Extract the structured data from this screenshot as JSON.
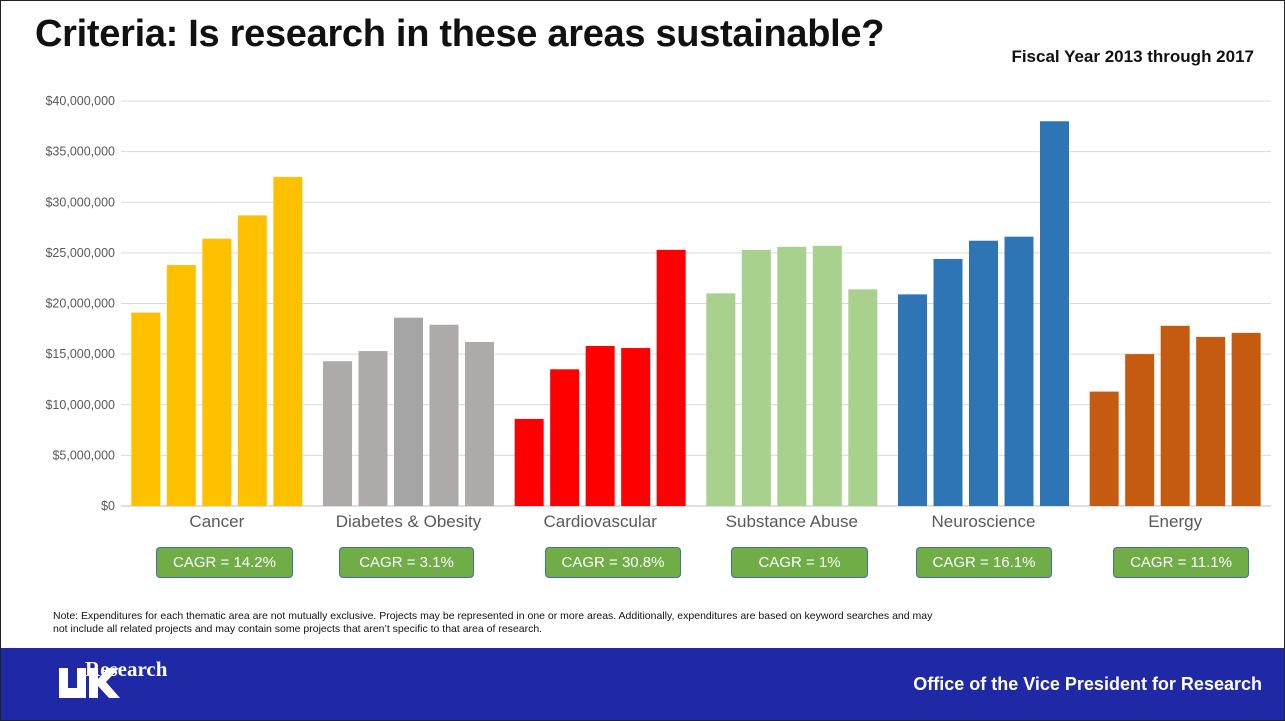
{
  "slide": {
    "title": "Criteria:  Is research in these areas sustainable?",
    "subtitle": "Fiscal Year 2013 through 2017",
    "note": "Note: Expenditures for each thematic area are not mutually exclusive. Projects may be represented in one or more areas. Additionally, expenditures are based on keyword searches and may not include all related projects and may contain some projects that aren’t specific to that area of research."
  },
  "cagr": [
    "CAGR = 14.2%",
    "CAGR = 3.1%",
    "CAGR = 30.8%",
    "CAGR = 1%",
    "CAGR = 16.1%",
    "CAGR = 11.1%"
  ],
  "footer": {
    "logo_text": "Research",
    "right_text": "Office of the Vice President for Research",
    "background": "#1f29a6"
  },
  "chart_data": {
    "type": "bar",
    "title": "",
    "xlabel": "",
    "ylabel": "",
    "ylim": [
      0,
      40000000
    ],
    "y_ticks": [
      0,
      5000000,
      10000000,
      15000000,
      20000000,
      25000000,
      30000000,
      35000000,
      40000000
    ],
    "y_tick_labels": [
      "$0",
      "$5,000,000",
      "$10,000,000",
      "$15,000,000",
      "$20,000,000",
      "$25,000,000",
      "$30,000,000",
      "$35,000,000",
      "$40,000,000"
    ],
    "grid": true,
    "categories": [
      "Cancer",
      "Diabetes & Obesity",
      "Cardiovascular",
      "Substance Abuse",
      "Neuroscience",
      "Energy"
    ],
    "category_colors": [
      "#ffc000",
      "#aeaaaa",
      "#ff0000",
      "#a9d18e",
      "#2e75b6",
      "#c55a11"
    ],
    "category_shade_colors": [
      "#ffc000",
      "#a5a5a5",
      "#ff0000",
      "#a9d18e",
      "#2e75b6",
      "#c55a11"
    ],
    "values": [
      [
        19100000,
        23800000,
        26400000,
        28700000,
        32500000
      ],
      [
        14300000,
        15300000,
        18600000,
        17900000,
        16200000
      ],
      [
        8600000,
        13500000,
        15800000,
        15600000,
        25300000
      ],
      [
        21000000,
        25300000,
        25600000,
        25700000,
        21400000
      ],
      [
        20900000,
        24400000,
        26200000,
        26600000,
        38000000
      ],
      [
        11300000,
        15000000,
        17800000,
        16700000,
        17100000
      ]
    ]
  }
}
